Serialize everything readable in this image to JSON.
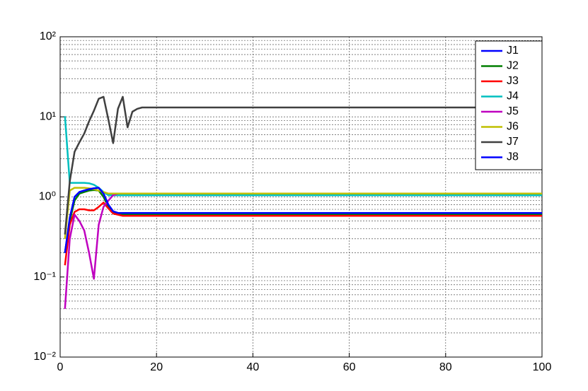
{
  "chart_data": {
    "type": "line",
    "log_y": true,
    "grid": true,
    "legend": "upper right",
    "x": [
      1,
      2,
      3,
      4,
      5,
      6,
      7,
      8,
      9,
      10,
      11,
      12,
      13,
      14,
      15,
      16,
      17,
      18,
      19,
      20,
      100
    ],
    "xlim": [
      0,
      100
    ],
    "xticks": [
      0,
      20,
      40,
      60,
      80,
      100
    ],
    "ylim": [
      0.01,
      100
    ],
    "yticks": [
      {
        "value": 0.01,
        "label": "10⁻²"
      },
      {
        "value": 0.1,
        "label": "10⁻¹"
      },
      {
        "value": 1,
        "label": "10⁰"
      },
      {
        "value": 10,
        "label": "10¹"
      },
      {
        "value": 100,
        "label": "10²"
      }
    ],
    "yticks_minor": [
      0.02,
      0.03,
      0.04,
      0.05,
      0.06,
      0.07,
      0.08,
      0.09,
      0.2,
      0.3,
      0.4,
      0.5,
      0.6,
      0.7,
      0.8,
      0.9,
      2,
      3,
      4,
      5,
      6,
      7,
      8,
      9,
      20,
      30,
      40,
      50,
      60,
      70,
      80,
      90
    ],
    "series": [
      {
        "name": "J1",
        "color": "#0000ff",
        "values": [
          0.2,
          0.5,
          1.0,
          1.15,
          1.2,
          1.25,
          1.28,
          1.3,
          1.1,
          0.8,
          0.66,
          0.63,
          0.63,
          0.63,
          0.63,
          0.63,
          0.63,
          0.63,
          0.63,
          0.63,
          0.63
        ]
      },
      {
        "name": "J2",
        "color": "#007f00",
        "values": [
          0.2,
          0.5,
          0.9,
          1.1,
          1.15,
          1.2,
          1.22,
          1.2,
          1.0,
          0.75,
          0.65,
          0.61,
          0.6,
          0.6,
          0.6,
          0.6,
          0.6,
          0.6,
          0.6,
          0.6,
          0.6
        ]
      },
      {
        "name": "J3",
        "color": "#ff0000",
        "values": [
          0.14,
          0.45,
          0.65,
          0.7,
          0.7,
          0.68,
          0.68,
          0.75,
          0.85,
          0.72,
          0.62,
          0.6,
          0.58,
          0.58,
          0.58,
          0.58,
          0.58,
          0.58,
          0.58,
          0.58,
          0.58
        ]
      },
      {
        "name": "J4",
        "color": "#00bfbf",
        "values": [
          10.2,
          1.5,
          1.5,
          1.5,
          1.5,
          1.48,
          1.42,
          1.3,
          1.15,
          1.05,
          1.05,
          1.05,
          1.05,
          1.05,
          1.05,
          1.05,
          1.05,
          1.05,
          1.05,
          1.05,
          1.05
        ]
      },
      {
        "name": "J5",
        "color": "#bf00bf",
        "values": [
          0.04,
          0.3,
          0.6,
          0.5,
          0.38,
          0.2,
          0.095,
          0.45,
          0.75,
          0.9,
          1.05,
          1.1,
          1.1,
          1.1,
          1.1,
          1.1,
          1.1,
          1.1,
          1.1,
          1.1,
          1.1
        ]
      },
      {
        "name": "J6",
        "color": "#bfbf00",
        "values": [
          0.3,
          1.2,
          1.3,
          1.3,
          1.3,
          1.28,
          1.25,
          1.2,
          1.15,
          1.1,
          1.1,
          1.1,
          1.1,
          1.1,
          1.1,
          1.1,
          1.1,
          1.1,
          1.1,
          1.1,
          1.1
        ]
      },
      {
        "name": "J7",
        "color": "#404040",
        "values": [
          0.34,
          1.56,
          3.66,
          4.8,
          6.2,
          8.8,
          11.9,
          16.8,
          17.8,
          9.3,
          4.7,
          12.6,
          17.8,
          7.4,
          11.6,
          12.6,
          13.1,
          13.1,
          13.1,
          13.1,
          13.1
        ]
      },
      {
        "name": "J8",
        "color": "#0000ff",
        "values": [
          0.2,
          0.55,
          1.0,
          1.15,
          1.2,
          1.25,
          1.28,
          1.3,
          1.1,
          0.8,
          0.66,
          0.63,
          0.63,
          0.63,
          0.63,
          0.63,
          0.63,
          0.63,
          0.63,
          0.63,
          0.63
        ]
      }
    ]
  }
}
